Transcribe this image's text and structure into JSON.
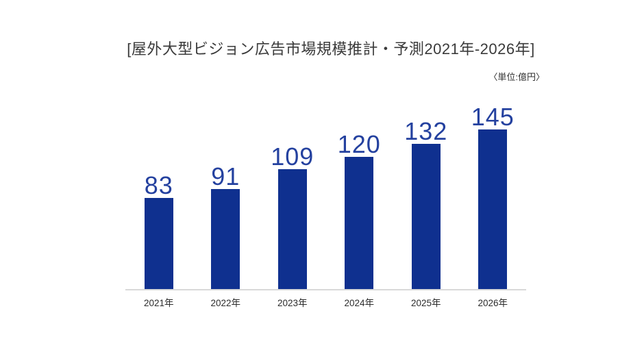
{
  "header": {
    "title": "[屋外大型ビジョン広告市場規模推計・予測2021年-2026年]",
    "unit_label": "〈単位:億円〉"
  },
  "colors": {
    "bar": "#0f308f",
    "value_label": "#24419f",
    "axis_line": "#d9d9d9",
    "title_text": "#3a3a3a",
    "tick_text": "#2b2b2b",
    "background": "#ffffff"
  },
  "chart_data": {
    "type": "bar",
    "title": "[屋外大型ビジョン広告市場規模推計・予測2021年-2026年]",
    "unit": "億円",
    "categories": [
      "2021年",
      "2022年",
      "2023年",
      "2024年",
      "2025年",
      "2026年"
    ],
    "values": [
      83,
      91,
      109,
      120,
      132,
      145
    ],
    "value_labels": [
      "83",
      "91",
      "109",
      "120",
      "132",
      "145"
    ],
    "ylabel": "",
    "xlabel": "",
    "ylim": [
      0,
      160
    ],
    "grid": false,
    "legend": false,
    "data_labels_position": "above-bar",
    "baseline_axis": "x"
  }
}
